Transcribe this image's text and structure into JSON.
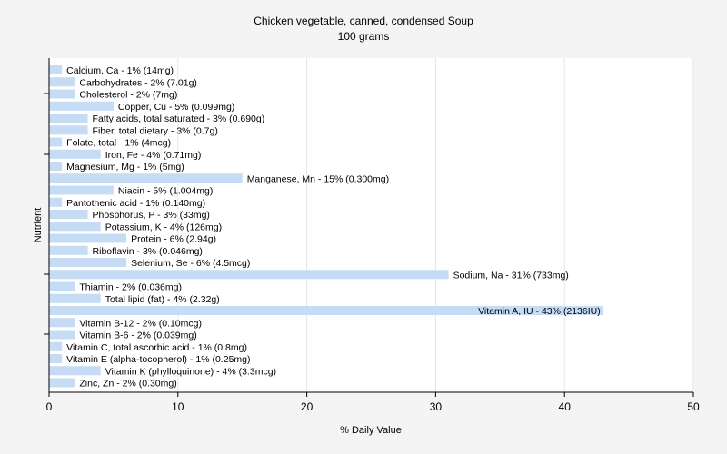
{
  "chart_data": {
    "type": "bar",
    "orientation": "horizontal",
    "title": "Chicken vegetable, canned, condensed Soup",
    "subtitle": "100 grams",
    "xlabel": "% Daily Value",
    "ylabel": "Nutrient",
    "xlim": [
      0,
      50
    ],
    "xticks": [
      0,
      10,
      20,
      30,
      40,
      50
    ],
    "grid": true,
    "bar_color": "#c6dcf5",
    "categories": [
      "Calcium, Ca - 1% (14mg)",
      "Carbohydrates - 2% (7.01g)",
      "Cholesterol - 2% (7mg)",
      "Copper, Cu - 5% (0.099mg)",
      "Fatty acids, total saturated - 3% (0.690g)",
      "Fiber, total dietary - 3% (0.7g)",
      "Folate, total - 1% (4mcg)",
      "Iron, Fe - 4% (0.71mg)",
      "Magnesium, Mg - 1% (5mg)",
      "Manganese, Mn - 15% (0.300mg)",
      "Niacin - 5% (1.004mg)",
      "Pantothenic acid - 1% (0.140mg)",
      "Phosphorus, P - 3% (33mg)",
      "Potassium, K - 4% (126mg)",
      "Protein - 6% (2.94g)",
      "Riboflavin - 3% (0.046mg)",
      "Selenium, Se - 6% (4.5mcg)",
      "Sodium, Na - 31% (733mg)",
      "Thiamin - 2% (0.036mg)",
      "Total lipid (fat) - 4% (2.32g)",
      "Vitamin A, IU - 43% (2136IU)",
      "Vitamin B-12 - 2% (0.10mcg)",
      "Vitamin B-6 - 2% (0.039mg)",
      "Vitamin C, total ascorbic acid - 1% (0.8mg)",
      "Vitamin E (alpha-tocopherol) - 1% (0.25mg)",
      "Vitamin K (phylloquinone) - 4% (3.3mcg)",
      "Zinc, Zn - 2% (0.30mg)"
    ],
    "values": [
      1,
      2,
      2,
      5,
      3,
      3,
      1,
      4,
      1,
      15,
      5,
      1,
      3,
      4,
      6,
      3,
      6,
      31,
      2,
      4,
      43,
      2,
      2,
      1,
      1,
      4,
      2
    ]
  }
}
